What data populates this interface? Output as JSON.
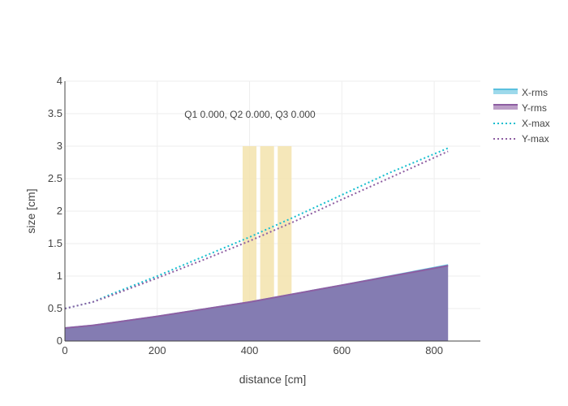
{
  "chart_data": {
    "type": "area",
    "xlabel": "distance [cm]",
    "ylabel": "size [cm]",
    "xlim": [
      0,
      900
    ],
    "ylim": [
      0,
      4
    ],
    "xticks": [
      0,
      200,
      400,
      600,
      800
    ],
    "yticks": [
      0,
      0.5,
      1,
      1.5,
      2,
      2.5,
      3,
      3.5,
      4
    ],
    "grid": true,
    "legend_position": "top-right",
    "annotation": "Q1 0.000, Q2 0.000, Q3 0.000",
    "quad_regions": [
      {
        "x0": 385,
        "x1": 415,
        "height": 3.0
      },
      {
        "x0": 423,
        "x1": 453,
        "height": 3.0
      },
      {
        "x0": 461,
        "x1": 491,
        "height": 3.0
      }
    ],
    "series": [
      {
        "name": "X-rms",
        "style": "filled-area",
        "color": "#5bc0de",
        "x": [
          0,
          60,
          200,
          400,
          600,
          830
        ],
        "y": [
          0.2,
          0.24,
          0.38,
          0.6,
          0.86,
          1.17
        ]
      },
      {
        "name": "Y-rms",
        "style": "filled-area",
        "color": "#8e5ea2",
        "x": [
          0,
          60,
          200,
          400,
          600,
          830
        ],
        "y": [
          0.2,
          0.24,
          0.38,
          0.6,
          0.86,
          1.16
        ]
      },
      {
        "name": "X-max",
        "style": "dotted-line",
        "color": "#17becf",
        "x": [
          0,
          60,
          100,
          200,
          300,
          400,
          500,
          600,
          700,
          830
        ],
        "y": [
          0.5,
          0.6,
          0.72,
          1.0,
          1.3,
          1.6,
          1.92,
          2.25,
          2.58,
          2.97
        ]
      },
      {
        "name": "Y-max",
        "style": "dotted-line",
        "color": "#8e5ea2",
        "x": [
          0,
          60,
          100,
          200,
          300,
          400,
          500,
          600,
          700,
          830
        ],
        "y": [
          0.5,
          0.6,
          0.7,
          0.97,
          1.25,
          1.54,
          1.85,
          2.18,
          2.5,
          2.92
        ]
      }
    ]
  },
  "colors": {
    "quad_fill": "#f3e3ad",
    "area_fill": "#7f8cbb",
    "grid": "#eeeeee",
    "axis": "#444444"
  }
}
